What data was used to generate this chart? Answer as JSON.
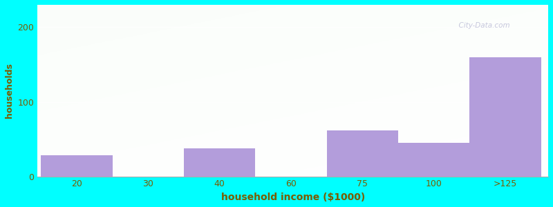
{
  "xlabel": "household income ($1000)",
  "ylabel": "households",
  "bg_color": "#00FFFF",
  "bar_color": "#b39ddb",
  "bar_alpha": 1.0,
  "categories": [
    "20",
    "30",
    "40",
    "60",
    "75",
    "100",
    ">125"
  ],
  "ylim": [
    0,
    230
  ],
  "yticks": [
    0,
    100,
    200
  ],
  "title_fontsize": 13,
  "subtitle_fontsize": 10,
  "xlabel_fontsize": 10,
  "ylabel_fontsize": 9,
  "tick_fontsize": 9,
  "title_color": "#2a2a2a",
  "subtitle_color": "#008888",
  "axis_label_color": "#7a5c00",
  "tick_label_color": "#7a5c00",
  "watermark": "  City-Data.com",
  "bar_centers": [
    0.5,
    2.5,
    4.5,
    5.5,
    6.5
  ],
  "bar_heights": [
    28,
    38,
    62,
    45,
    160
  ],
  "bar_widths": [
    1.0,
    1.0,
    1.0,
    1.0,
    1.0
  ],
  "tick_positions": [
    0.5,
    1.5,
    2.5,
    3.5,
    4.5,
    5.5,
    6.5
  ],
  "xlim": [
    -0.05,
    7.1
  ]
}
